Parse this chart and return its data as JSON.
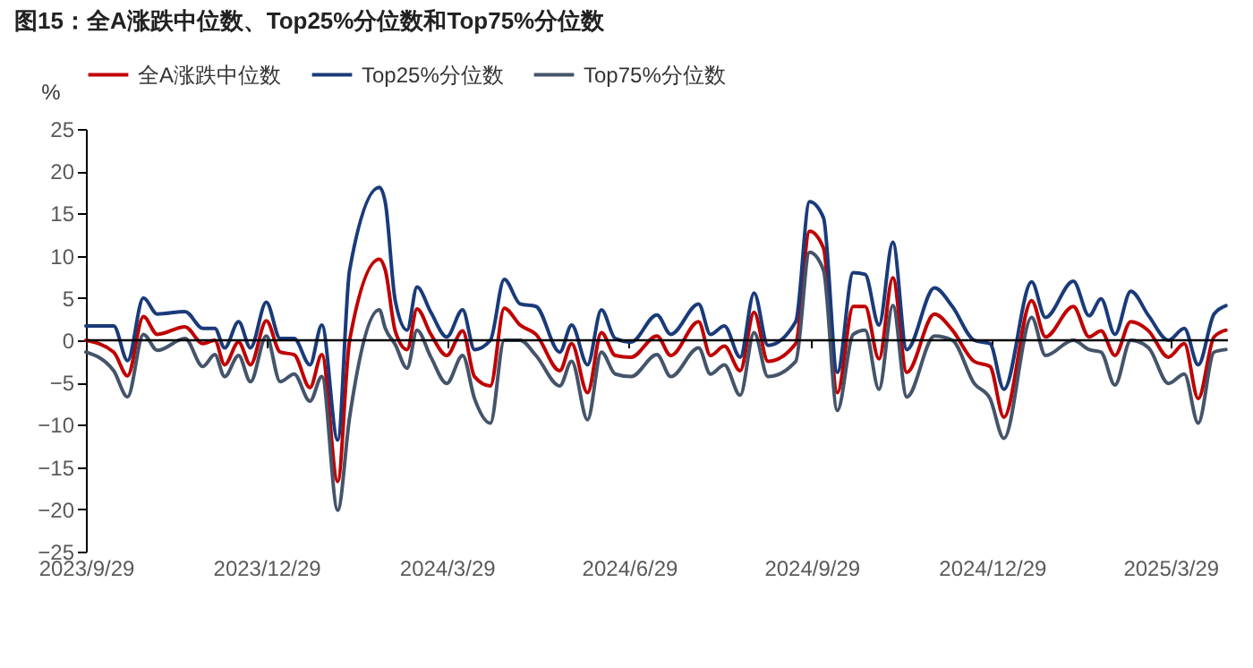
{
  "chart_data": {
    "type": "line",
    "title": "图15：全A涨跌中位数、Top25%分位数和Top75%分位数",
    "ylabel": "%",
    "x": [
      "2023-09-29",
      "2023-10-13",
      "2023-10-20",
      "2023-10-28",
      "2023-11-04",
      "2023-11-18",
      "2023-11-27",
      "2023-12-03",
      "2023-12-08",
      "2023-12-15",
      "2023-12-21",
      "2023-12-29",
      "2024-01-05",
      "2024-01-12",
      "2024-01-20",
      "2024-01-26",
      "2024-02-03",
      "2024-02-09",
      "2024-02-24",
      "2024-02-27",
      "2024-03-03",
      "2024-03-09",
      "2024-03-14",
      "2024-03-21",
      "2024-03-29",
      "2024-04-06",
      "2024-04-12",
      "2024-04-20",
      "2024-04-27",
      "2024-05-05",
      "2024-05-13",
      "2024-05-25",
      "2024-05-31",
      "2024-06-08",
      "2024-06-15",
      "2024-06-22",
      "2024-06-30",
      "2024-07-13",
      "2024-07-20",
      "2024-08-03",
      "2024-08-09",
      "2024-08-16",
      "2024-08-24",
      "2024-08-31",
      "2024-09-07",
      "2024-09-21",
      "2024-09-28",
      "2024-10-05",
      "2024-10-12",
      "2024-10-20",
      "2024-10-26",
      "2024-11-02",
      "2024-11-09",
      "2024-11-16",
      "2024-11-30",
      "2024-12-09",
      "2024-12-20",
      "2024-12-28",
      "2025-01-04",
      "2025-01-18",
      "2025-01-25",
      "2025-02-08",
      "2025-02-16",
      "2025-02-22",
      "2025-03-01",
      "2025-03-09",
      "2025-03-18",
      "2025-03-28",
      "2025-04-05",
      "2025-04-12",
      "2025-04-20",
      "2025-04-26"
    ],
    "series": [
      {
        "name": "全A涨跌中位数",
        "color": "#c00000",
        "values": [
          0,
          -1.4,
          -4.2,
          2.8,
          0.7,
          1.6,
          -0.4,
          0,
          -2.9,
          -0.2,
          -2.9,
          2.3,
          -1.4,
          -1.7,
          -5.6,
          -1.7,
          -16.7,
          0,
          9.6,
          8.3,
          1.1,
          -1.1,
          3.7,
          0.7,
          -1.8,
          1.1,
          -4.3,
          -5.4,
          3.8,
          1.8,
          0.7,
          -3.6,
          -0.4,
          -6.2,
          0.9,
          -1.8,
          -2.0,
          0.5,
          -1.8,
          2.2,
          -1.8,
          -0.7,
          -3.6,
          3.3,
          -2.5,
          -0.4,
          12.9,
          10.9,
          -6.2,
          4.0,
          4.0,
          -2.2,
          7.4,
          -3.8,
          3.1,
          1.2,
          -2.5,
          -3.1,
          -9.1,
          4.7,
          0.4,
          4.0,
          0.4,
          1.1,
          -1.8,
          2.2,
          1.1,
          -2.0,
          -0.4,
          -6.9,
          0.4,
          1.2
        ]
      },
      {
        "name": "Top25%分位数",
        "color": "#1a3b7a",
        "values": [
          1.7,
          1.7,
          -2.4,
          5.0,
          3.1,
          3.4,
          1.4,
          1.4,
          -0.9,
          2.2,
          -0.9,
          4.5,
          0.2,
          0.2,
          -2.9,
          1.8,
          -11.8,
          8.3,
          18.1,
          16.3,
          4.7,
          1.2,
          6.3,
          3.3,
          0.4,
          3.6,
          -1.1,
          0,
          7.2,
          4.3,
          4.0,
          -1.4,
          1.8,
          -2.9,
          3.6,
          0.2,
          -0.2,
          3.0,
          0.7,
          4.3,
          0.7,
          1.7,
          -2.0,
          5.6,
          -0.6,
          2.2,
          16.4,
          14.5,
          -3.8,
          8.0,
          7.8,
          1.8,
          11.6,
          -1.1,
          6.2,
          4.0,
          0,
          -0.4,
          -5.8,
          6.9,
          2.7,
          7.0,
          2.9,
          4.9,
          0.7,
          5.8,
          2.9,
          0,
          1.4,
          -2.9,
          3.1,
          4.1
        ]
      },
      {
        "name": "Top75%分位数",
        "color": "#44546a",
        "values": [
          -1.4,
          -3.6,
          -6.7,
          0.7,
          -1.2,
          0.2,
          -3.1,
          -1.7,
          -4.3,
          -1.8,
          -4.9,
          0.5,
          -4.9,
          -4.0,
          -7.2,
          -4.3,
          -20.1,
          -9.1,
          3.6,
          1.4,
          -0.5,
          -3.3,
          1.2,
          -2.0,
          -5.1,
          -1.8,
          -6.9,
          -9.8,
          0,
          0,
          -1.8,
          -5.4,
          -2.5,
          -9.4,
          -1.4,
          -4.0,
          -4.3,
          -1.7,
          -4.3,
          -0.9,
          -4.0,
          -2.9,
          -6.5,
          0.9,
          -4.3,
          -2.5,
          10.4,
          8.3,
          -8.3,
          0.7,
          1.2,
          -5.8,
          4.1,
          -6.7,
          0.5,
          0,
          -5.1,
          -6.9,
          -11.6,
          2.7,
          -1.8,
          0,
          -1.1,
          -1.4,
          -5.3,
          0,
          -0.9,
          -5.1,
          -4.0,
          -9.8,
          -1.4,
          -1.1
        ]
      }
    ],
    "xlim": [
      "2023-09-29",
      "2025-04-27"
    ],
    "xticks": [
      {
        "value": "2023-09-29",
        "label": "2023/9/29"
      },
      {
        "value": "2023-12-29",
        "label": "2023/12/29"
      },
      {
        "value": "2024-03-29",
        "label": "2024/3/29"
      },
      {
        "value": "2024-06-29",
        "label": "2024/6/29"
      },
      {
        "value": "2024-09-29",
        "label": "2024/9/29"
      },
      {
        "value": "2024-12-29",
        "label": "2024/12/29"
      },
      {
        "value": "2025-03-29",
        "label": "2025/3/29"
      }
    ],
    "ylim": [
      -25,
      25
    ],
    "yticks": [
      -25,
      -20,
      -15,
      -10,
      -5,
      0,
      5,
      10,
      15,
      20,
      25
    ],
    "ref_lines": [
      {
        "axis": "y",
        "value": 0,
        "color": "#000000",
        "line_style": "solid"
      }
    ],
    "grid": false,
    "legend": "top",
    "marker": "none",
    "line_style": "solid"
  }
}
